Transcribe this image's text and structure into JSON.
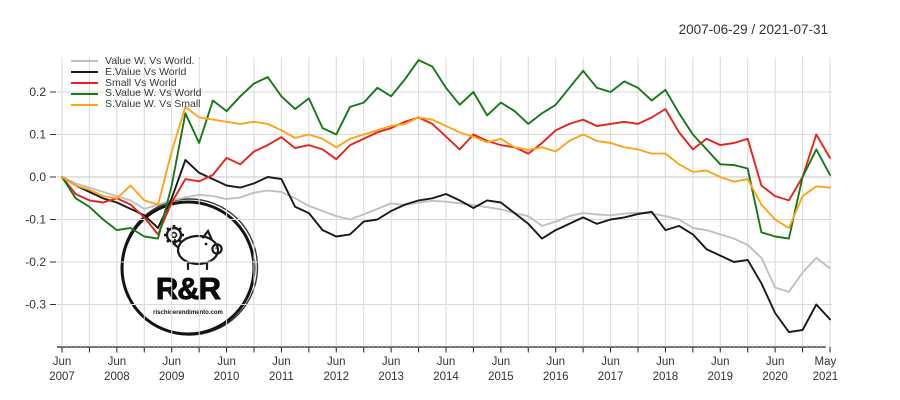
{
  "header": {
    "date_range": "2007-06-29 / 2021-07-31"
  },
  "logo": {
    "text": "R&R",
    "url": "rischioerendimento.com"
  },
  "colors": {
    "background": "#ffffff",
    "grid": "#d9d9d9",
    "zero_line": "#c4c4c4",
    "axis": "#333333",
    "text": "#333333"
  },
  "chart_data": {
    "type": "line",
    "title": "",
    "xlabel": "",
    "ylabel": "",
    "x_period": "monthly series from 2007-06-29 to 2021-07-31 (values sampled quarterly below)",
    "grid": true,
    "legend_position": "top-left",
    "ylim": [
      -0.4,
      0.28
    ],
    "y_ticks": [
      {
        "label": "0.2",
        "value": 0.2
      },
      {
        "label": "0.1",
        "value": 0.1
      },
      {
        "label": "0.0",
        "value": 0.0
      },
      {
        "label": "-0.1",
        "value": -0.1
      },
      {
        "label": "-0.2",
        "value": -0.2
      },
      {
        "label": "-0.3",
        "value": -0.3
      }
    ],
    "x_ticks": [
      {
        "label": "Jun 2007",
        "month_index": 0
      },
      {
        "label": "Jun 2008",
        "month_index": 12
      },
      {
        "label": "Jun 2009",
        "month_index": 24
      },
      {
        "label": "Jun 2010",
        "month_index": 36
      },
      {
        "label": "Jun 2011",
        "month_index": 48
      },
      {
        "label": "Jun 2012",
        "month_index": 60
      },
      {
        "label": "Jun 2013",
        "month_index": 72
      },
      {
        "label": "Jun 2014",
        "month_index": 84
      },
      {
        "label": "Jun 2015",
        "month_index": 96
      },
      {
        "label": "Jun 2016",
        "month_index": 108
      },
      {
        "label": "Jun 2017",
        "month_index": 120
      },
      {
        "label": "Jun 2018",
        "month_index": 132
      },
      {
        "label": "Jun 2019",
        "month_index": 144
      },
      {
        "label": "Jun 2020",
        "month_index": 156
      },
      {
        "label": "May 2021",
        "month_index": 167
      }
    ],
    "series": [
      {
        "name": "Value W. Vs World.",
        "color": "#c0c0c0",
        "values": [
          0.0,
          -0.015,
          -0.025,
          -0.035,
          -0.045,
          -0.055,
          -0.075,
          -0.065,
          -0.055,
          -0.048,
          -0.042,
          -0.045,
          -0.052,
          -0.048,
          -0.037,
          -0.032,
          -0.035,
          -0.05,
          -0.068,
          -0.08,
          -0.092,
          -0.1,
          -0.088,
          -0.075,
          -0.062,
          -0.066,
          -0.06,
          -0.056,
          -0.058,
          -0.062,
          -0.066,
          -0.071,
          -0.076,
          -0.085,
          -0.092,
          -0.115,
          -0.105,
          -0.092,
          -0.085,
          -0.088,
          -0.09,
          -0.086,
          -0.084,
          -0.086,
          -0.092,
          -0.1,
          -0.12,
          -0.125,
          -0.135,
          -0.145,
          -0.16,
          -0.19,
          -0.26,
          -0.27,
          -0.225,
          -0.19,
          -0.215
        ]
      },
      {
        "name": "E.Value Vs World",
        "color": "#1a1a1a",
        "values": [
          0.0,
          -0.02,
          -0.035,
          -0.05,
          -0.06,
          -0.075,
          -0.09,
          -0.12,
          -0.05,
          0.04,
          0.01,
          -0.005,
          -0.02,
          -0.025,
          -0.015,
          0.0,
          -0.005,
          -0.07,
          -0.085,
          -0.125,
          -0.14,
          -0.135,
          -0.105,
          -0.1,
          -0.08,
          -0.065,
          -0.055,
          -0.05,
          -0.04,
          -0.055,
          -0.073,
          -0.055,
          -0.06,
          -0.085,
          -0.11,
          -0.145,
          -0.125,
          -0.11,
          -0.095,
          -0.11,
          -0.1,
          -0.095,
          -0.087,
          -0.082,
          -0.125,
          -0.115,
          -0.135,
          -0.17,
          -0.185,
          -0.2,
          -0.195,
          -0.25,
          -0.32,
          -0.365,
          -0.36,
          -0.3,
          -0.335
        ]
      },
      {
        "name": "Small Vs World",
        "color": "#e8231d",
        "values": [
          0.0,
          -0.04,
          -0.055,
          -0.06,
          -0.05,
          -0.065,
          -0.095,
          -0.135,
          -0.06,
          -0.005,
          -0.01,
          0.005,
          0.045,
          0.03,
          0.06,
          0.075,
          0.094,
          0.068,
          0.075,
          0.065,
          0.042,
          0.075,
          0.09,
          0.105,
          0.115,
          0.13,
          0.14,
          0.125,
          0.095,
          0.065,
          0.1,
          0.085,
          0.075,
          0.07,
          0.055,
          0.08,
          0.11,
          0.125,
          0.135,
          0.12,
          0.125,
          0.13,
          0.125,
          0.14,
          0.16,
          0.105,
          0.065,
          0.09,
          0.075,
          0.08,
          0.09,
          -0.02,
          -0.045,
          -0.055,
          0.0,
          0.1,
          0.045
        ]
      },
      {
        "name": "S.Value W. Vs World",
        "color": "#187818",
        "values": [
          0.0,
          -0.05,
          -0.07,
          -0.1,
          -0.125,
          -0.12,
          -0.14,
          -0.145,
          -0.02,
          0.15,
          0.08,
          0.18,
          0.155,
          0.19,
          0.22,
          0.235,
          0.19,
          0.16,
          0.185,
          0.115,
          0.1,
          0.165,
          0.175,
          0.21,
          0.19,
          0.23,
          0.275,
          0.26,
          0.21,
          0.17,
          0.2,
          0.145,
          0.175,
          0.155,
          0.125,
          0.15,
          0.17,
          0.21,
          0.25,
          0.21,
          0.2,
          0.225,
          0.21,
          0.18,
          0.205,
          0.15,
          0.1,
          0.065,
          0.03,
          0.028,
          0.02,
          -0.13,
          -0.14,
          -0.145,
          0.0,
          0.065,
          0.005
        ]
      },
      {
        "name": "S.Value W. Vs Small",
        "color": "#ffa319",
        "values": [
          0.0,
          -0.02,
          -0.03,
          -0.045,
          -0.05,
          -0.02,
          -0.055,
          -0.065,
          0.06,
          0.165,
          0.14,
          0.135,
          0.13,
          0.125,
          0.13,
          0.125,
          0.11,
          0.092,
          0.1,
          0.09,
          0.07,
          0.09,
          0.1,
          0.11,
          0.12,
          0.125,
          0.14,
          0.135,
          0.12,
          0.105,
          0.095,
          0.082,
          0.09,
          0.07,
          0.064,
          0.07,
          0.06,
          0.085,
          0.1,
          0.085,
          0.08,
          0.07,
          0.065,
          0.055,
          0.055,
          0.03,
          0.012,
          0.015,
          0.0,
          -0.011,
          -0.005,
          -0.065,
          -0.1,
          -0.12,
          -0.045,
          -0.022,
          -0.025
        ]
      }
    ]
  }
}
